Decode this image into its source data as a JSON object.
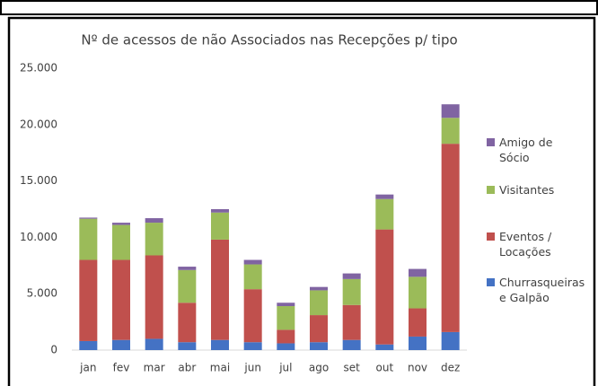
{
  "chart_data": {
    "type": "stacked_bar",
    "title": "Nº de acessos de não Associados nas Recepções p/ tipo",
    "categories": [
      "jan",
      "fev",
      "mar",
      "abr",
      "mai",
      "jun",
      "jul",
      "ago",
      "set",
      "out",
      "nov",
      "dez"
    ],
    "series": [
      {
        "name": "Churrasqueiras e Galpão",
        "color": "#4472c4",
        "values": [
          800,
          900,
          1000,
          700,
          900,
          700,
          600,
          700,
          900,
          500,
          1200,
          1600
        ]
      },
      {
        "name": "Eventos / Locações",
        "color": "#c0504d",
        "values": [
          7200,
          7100,
          7400,
          3500,
          8900,
          4700,
          1200,
          2400,
          3100,
          10200,
          2500,
          16700
        ]
      },
      {
        "name": "Visitantes",
        "color": "#9bbb59",
        "values": [
          3650,
          3100,
          2900,
          2900,
          2400,
          2200,
          2100,
          2200,
          2300,
          2700,
          2800,
          2300
        ]
      },
      {
        "name": "Amigo de Sócio",
        "color": "#8064a2",
        "values": [
          100,
          200,
          400,
          300,
          300,
          400,
          300,
          300,
          500,
          400,
          700,
          1200
        ]
      }
    ],
    "ylim": [
      0,
      25000
    ],
    "yticks": [
      0,
      {
        "value": 5000,
        "label": "5.000"
      },
      {
        "value": 10000,
        "label": "10.000"
      },
      {
        "value": 15000,
        "label": "15.000"
      },
      {
        "value": 20000,
        "label": "20.000"
      },
      {
        "value": 25000,
        "label": "25.000"
      }
    ],
    "grid": false,
    "legend": "right"
  }
}
